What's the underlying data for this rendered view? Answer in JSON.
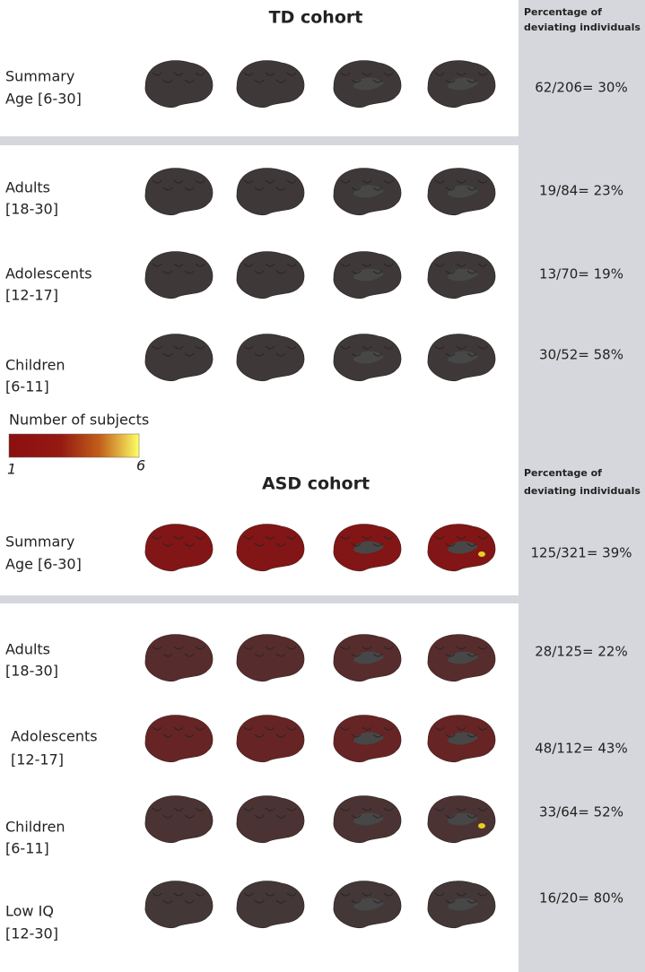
{
  "colorbar": {
    "title": "Number of subjects",
    "min_label": "1",
    "max_label": "6"
  },
  "sections": [
    {
      "title": "TD cohort",
      "column_header": [
        "Percentage of",
        "deviating individuals"
      ],
      "rows": [
        {
          "label": [
            "Summary",
            "Age [6-30]"
          ],
          "value": "62/206= 30%"
        },
        {
          "label": [
            "Adults",
            "[18-30]"
          ],
          "value": "19/84= 23%"
        },
        {
          "label": [
            "Adolescents",
            "[12-17]"
          ],
          "value": "13/70= 19%"
        },
        {
          "label": [
            "Children",
            "[6-11]"
          ],
          "value": "30/52= 58%"
        }
      ]
    },
    {
      "title": "ASD cohort",
      "column_header": [
        "Percentage of",
        "deviating individuals"
      ],
      "rows": [
        {
          "label": [
            "Summary",
            "Age [6-30]"
          ],
          "value": "125/321= 39%"
        },
        {
          "label": [
            "Adults",
            "[18-30]"
          ],
          "value": "28/125= 22%"
        },
        {
          "label": [
            "Adolescents",
            "[12-17]"
          ],
          "value": "48/112= 43%"
        },
        {
          "label": [
            "Children",
            "[6-11]"
          ],
          "value": "33/64= 52%"
        },
        {
          "label": [
            "Low IQ",
            "[12-30]"
          ],
          "value": "16/20= 80%"
        }
      ]
    }
  ]
}
